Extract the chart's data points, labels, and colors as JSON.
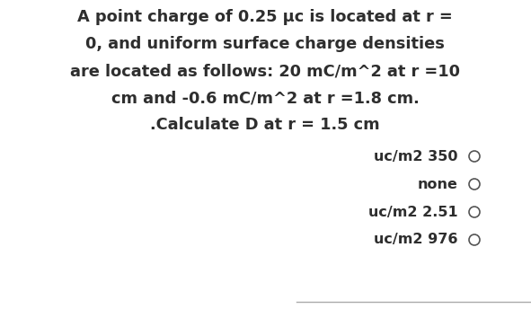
{
  "background_color": "#ffffff",
  "question_lines": [
    "A point charge of 0.25 μc is located at r =",
    "0, and uniform surface charge densities",
    "are located as follows: 20 mC/m^2 at r =10",
    "cm and -0.6 mC/m^2 at r =1.8 cm.",
    ".Calculate D at r = 1.5 cm"
  ],
  "question_fontsize": 12.8,
  "question_fontweight": "bold",
  "question_color": "#2e2e2e",
  "options": [
    "uc/m2 350",
    "none",
    "uc/m2 2.51",
    "uc/m2 976"
  ],
  "options_fontsize": 11.5,
  "options_color": "#2e2e2e",
  "circle_color": "#555555",
  "bottom_line_color": "#aaaaaa"
}
